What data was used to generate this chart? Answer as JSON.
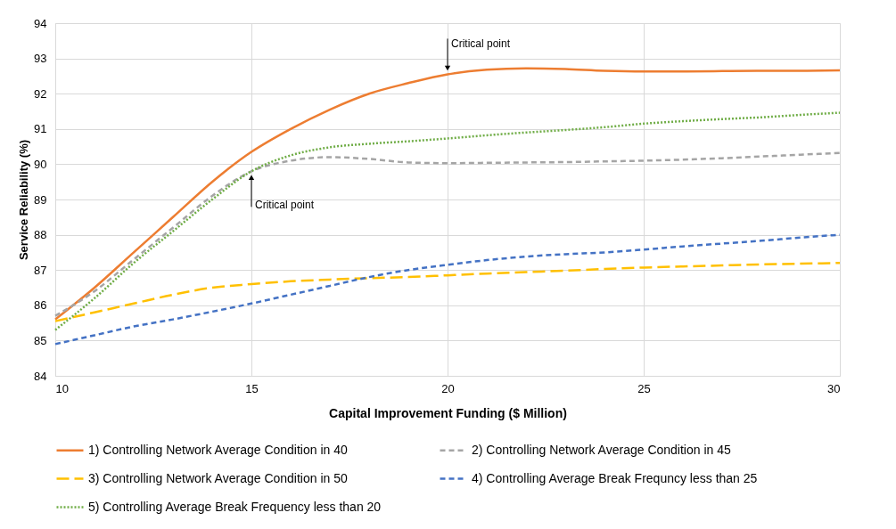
{
  "chart_data": {
    "type": "line",
    "xlabel": "Capital Improvement Funding ($ Million)",
    "ylabel": "Service Reliability (%)",
    "x": [
      10,
      11,
      12,
      13,
      14,
      15,
      16,
      17,
      18,
      19,
      20,
      21,
      22,
      23,
      24,
      25,
      26,
      27,
      28,
      29,
      30
    ],
    "xlim": [
      10,
      30
    ],
    "xticks": [
      10,
      15,
      20,
      25,
      30
    ],
    "ylim": [
      84,
      94
    ],
    "yticks": [
      84,
      85,
      86,
      87,
      88,
      89,
      90,
      91,
      92,
      93,
      94
    ],
    "grid": true,
    "legend": "bottom",
    "marker": "none",
    "series": [
      {
        "name": "1) Controlling Network Average Condition in 40",
        "color": "#ed7d31",
        "line_style": "solid",
        "values": [
          85.6,
          86.5,
          87.5,
          88.5,
          89.5,
          90.35,
          91.0,
          91.55,
          92.0,
          92.3,
          92.55,
          92.68,
          92.72,
          92.7,
          92.65,
          92.63,
          92.63,
          92.64,
          92.65,
          92.65,
          92.66
        ]
      },
      {
        "name": "2) Controlling Network Average Condition in 45",
        "color": "#a5a5a5",
        "line_style": "dashed",
        "values": [
          85.7,
          86.4,
          87.3,
          88.2,
          89.1,
          89.8,
          90.1,
          90.2,
          90.15,
          90.05,
          90.03,
          90.04,
          90.05,
          90.06,
          90.08,
          90.1,
          90.13,
          90.17,
          90.22,
          90.27,
          90.32
        ]
      },
      {
        "name": "3) Controlling Network Average Condition in 50",
        "color": "#ffc000",
        "line_style": "longdash",
        "values": [
          85.55,
          85.8,
          86.05,
          86.3,
          86.5,
          86.6,
          86.68,
          86.73,
          86.77,
          86.8,
          86.85,
          86.9,
          86.94,
          86.98,
          87.03,
          87.07,
          87.1,
          87.13,
          87.16,
          87.18,
          87.2
        ]
      },
      {
        "name": "4) Controlling Average Break Frequncy less than 25",
        "color": "#4472c4",
        "line_style": "dashed",
        "values": [
          84.9,
          85.15,
          85.4,
          85.6,
          85.82,
          86.05,
          86.3,
          86.55,
          86.8,
          87.0,
          87.15,
          87.28,
          87.38,
          87.45,
          87.5,
          87.58,
          87.67,
          87.75,
          87.83,
          87.92,
          88.0
        ]
      },
      {
        "name": "5) Controlling Average Break Frequency less than 20",
        "color": "#70ad47",
        "line_style": "dotted",
        "values": [
          85.3,
          86.2,
          87.2,
          88.1,
          89.0,
          89.8,
          90.25,
          90.48,
          90.58,
          90.65,
          90.73,
          90.82,
          90.9,
          90.97,
          91.05,
          91.15,
          91.22,
          91.28,
          91.33,
          91.4,
          91.46
        ]
      }
    ],
    "annotations": [
      {
        "text": "Critical point",
        "x": 20,
        "y": 92.55
      },
      {
        "text": "Critical point",
        "x": 15,
        "y": 89.8
      }
    ]
  }
}
